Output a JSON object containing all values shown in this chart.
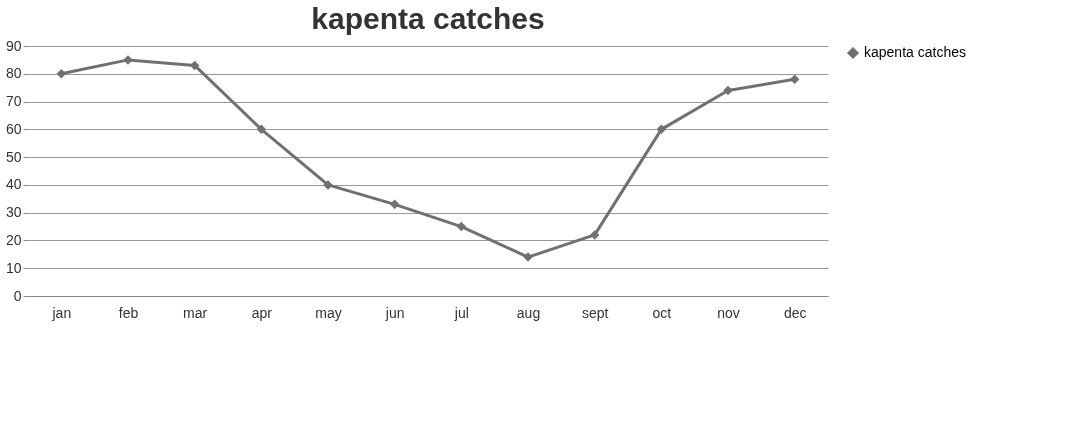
{
  "chart_data": {
    "type": "line",
    "title": "kapenta catches",
    "categories": [
      "jan",
      "feb",
      "mar",
      "apr",
      "may",
      "jun",
      "jul",
      "aug",
      "sept",
      "oct",
      "nov",
      "dec"
    ],
    "series": [
      {
        "name": "kapenta catches",
        "color": "#707070",
        "values": [
          80,
          85,
          83,
          60,
          40,
          33,
          25,
          14,
          22,
          60,
          74,
          78
        ]
      }
    ],
    "ylim": [
      0,
      90
    ],
    "yticks": [
      0,
      10,
      20,
      30,
      40,
      50,
      60,
      70,
      80,
      90
    ],
    "grid": "y",
    "legend": "right",
    "marker": "diamond",
    "line_style": "solid"
  }
}
